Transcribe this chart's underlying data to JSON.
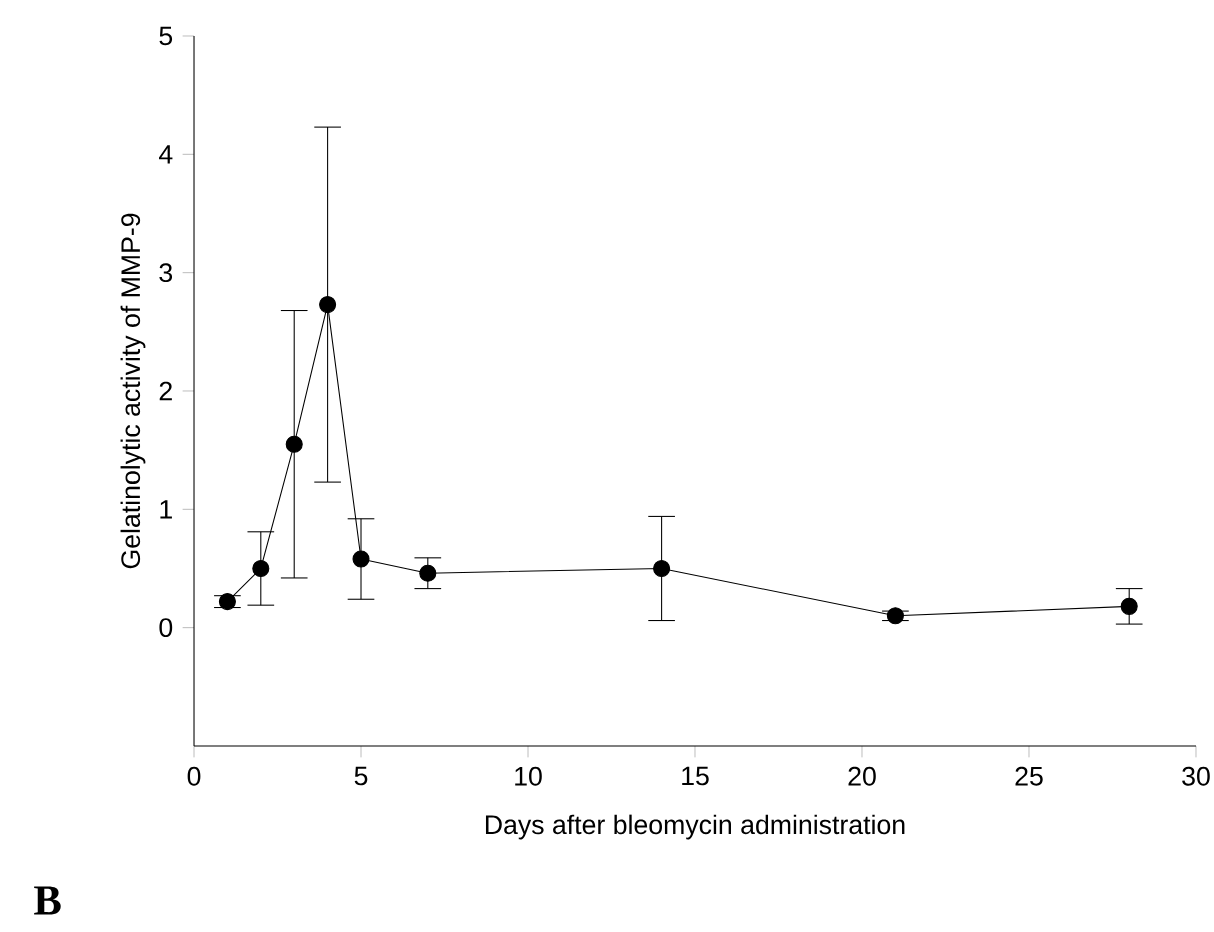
{
  "chart_data": {
    "type": "line",
    "xlabel": "Days after bleomycin administration",
    "ylabel": "Gelatinolytic activity of MMP-9",
    "x": [
      1,
      2,
      3,
      4,
      5,
      7,
      14,
      21,
      28
    ],
    "values": [
      0.22,
      0.5,
      1.55,
      2.73,
      0.58,
      0.46,
      0.5,
      0.1,
      0.18
    ],
    "errors": [
      0.05,
      0.31,
      1.13,
      1.5,
      0.34,
      0.13,
      0.44,
      0.04,
      0.15
    ],
    "color": "#000000",
    "marker": "circle",
    "line_style": "solid",
    "xlim": [
      0,
      30
    ],
    "xticks": [
      0,
      5,
      10,
      15,
      20,
      25,
      30
    ],
    "ylim": [
      -1,
      5
    ],
    "yticks": [
      0,
      1,
      2,
      3,
      4,
      5
    ],
    "grid": false,
    "annotations": [
      "B"
    ]
  }
}
